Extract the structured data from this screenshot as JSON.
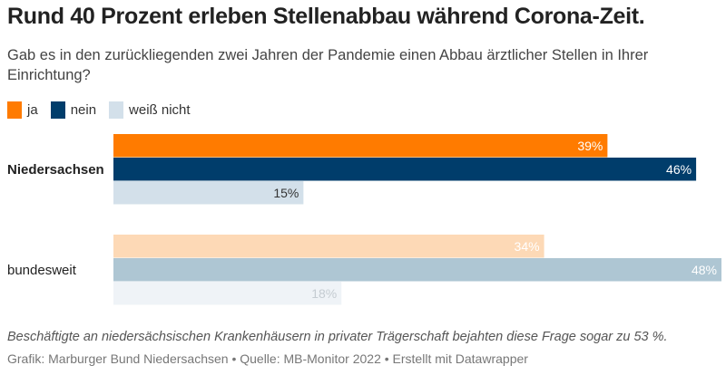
{
  "header": {
    "title": "Rund 40 Prozent erleben Stellenabbau während Corona-Zeit.",
    "subtitle": "Gab es in den zurückliegenden zwei Jahren der Pandemie einen Abbau ärztlicher Stellen in Ihrer Einrichtung?"
  },
  "chart_data": {
    "type": "bar",
    "orientation": "horizontal",
    "grouped": true,
    "categories": [
      "Niedersachsen",
      "bundesweit"
    ],
    "series": [
      {
        "name": "ja",
        "values": [
          39,
          34
        ],
        "labels": [
          "39%",
          "34%"
        ],
        "color": "#ff7b00",
        "color_faded": "#fdd9b6"
      },
      {
        "name": "nein",
        "values": [
          46,
          48
        ],
        "labels": [
          "46%",
          "48%"
        ],
        "color": "#003d6b",
        "color_faded": "#aec6d3"
      },
      {
        "name": "weiß nicht",
        "values": [
          15,
          18
        ],
        "labels": [
          "15%",
          "18%"
        ],
        "color": "#d3e0ea",
        "color_faded": "#eff3f7"
      }
    ],
    "highlighted_category": "Niedersachsen",
    "unit": "%",
    "xlim": [
      0,
      48
    ],
    "grid": false,
    "legend_position": "top-left"
  },
  "footer": {
    "note": "Beschäftigte an niedersächsischen Krankenhäusern in privater Trägerschaft bejahten diese Frage sogar zu 53 %.",
    "source": "Grafik: Marburger Bund Niedersachsen • Quelle: MB-Monitor 2022 • Erstellt mit Datawrapper"
  }
}
